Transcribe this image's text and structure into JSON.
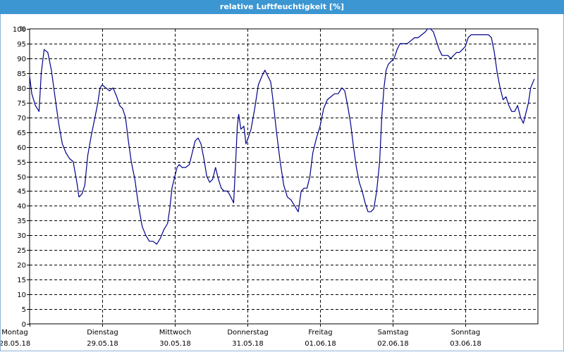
{
  "window": {
    "title": "relative Luftfeuchtigkeit [%]"
  },
  "colors": {
    "titlebar": "#3c96d2",
    "series": "#00008b",
    "grid": "#000000"
  },
  "chart_data": {
    "type": "line",
    "title": "relative Luftfeuchtigkeit [%]",
    "ylabel": "%",
    "xlabel": "",
    "ylim": [
      0,
      100
    ],
    "xlim": [
      0,
      7
    ],
    "y_ticks": [
      0,
      5,
      10,
      15,
      20,
      25,
      30,
      35,
      40,
      45,
      50,
      55,
      60,
      65,
      70,
      75,
      80,
      85,
      90,
      95,
      100
    ],
    "x_ticks": [
      {
        "day": "Montag",
        "date": "28.05.18"
      },
      {
        "day": "Dienstag",
        "date": "29.05.18"
      },
      {
        "day": "Mittwoch",
        "date": "30.05.18"
      },
      {
        "day": "Donnerstag",
        "date": "31.05.18"
      },
      {
        "day": "Freitag",
        "date": "01.06.18"
      },
      {
        "day": "Samstag",
        "date": "02.06.18"
      },
      {
        "day": "Sonntag",
        "date": "03.06.18"
      }
    ],
    "grid": true,
    "series": [
      {
        "values": [
          [
            0.0,
            84
          ],
          [
            0.03,
            78
          ],
          [
            0.08,
            74
          ],
          [
            0.13,
            72
          ],
          [
            0.16,
            85
          ],
          [
            0.2,
            93
          ],
          [
            0.25,
            92
          ],
          [
            0.3,
            86
          ],
          [
            0.35,
            77
          ],
          [
            0.4,
            68
          ],
          [
            0.45,
            61
          ],
          [
            0.5,
            58
          ],
          [
            0.55,
            56
          ],
          [
            0.6,
            55
          ],
          [
            0.65,
            48
          ],
          [
            0.68,
            43
          ],
          [
            0.72,
            44
          ],
          [
            0.76,
            47
          ],
          [
            0.8,
            57
          ],
          [
            0.85,
            64
          ],
          [
            0.9,
            70
          ],
          [
            0.94,
            75
          ],
          [
            0.97,
            80
          ],
          [
            1.0,
            81
          ],
          [
            1.05,
            80
          ],
          [
            1.1,
            79
          ],
          [
            1.15,
            80
          ],
          [
            1.2,
            77
          ],
          [
            1.24,
            74
          ],
          [
            1.28,
            73
          ],
          [
            1.32,
            70
          ],
          [
            1.36,
            62
          ],
          [
            1.4,
            55
          ],
          [
            1.45,
            49
          ],
          [
            1.5,
            40
          ],
          [
            1.55,
            33
          ],
          [
            1.6,
            30
          ],
          [
            1.65,
            28
          ],
          [
            1.7,
            28
          ],
          [
            1.75,
            27
          ],
          [
            1.8,
            29
          ],
          [
            1.85,
            32
          ],
          [
            1.9,
            34
          ],
          [
            1.93,
            39
          ],
          [
            1.96,
            46
          ],
          [
            2.0,
            50
          ],
          [
            2.03,
            53
          ],
          [
            2.06,
            54
          ],
          [
            2.1,
            53
          ],
          [
            2.15,
            53
          ],
          [
            2.2,
            54
          ],
          [
            2.24,
            58
          ],
          [
            2.28,
            62
          ],
          [
            2.32,
            63
          ],
          [
            2.36,
            61
          ],
          [
            2.4,
            56
          ],
          [
            2.44,
            50
          ],
          [
            2.48,
            48
          ],
          [
            2.52,
            49
          ],
          [
            2.56,
            53
          ],
          [
            2.6,
            49
          ],
          [
            2.64,
            46
          ],
          [
            2.68,
            45
          ],
          [
            2.72,
            45
          ],
          [
            2.75,
            44
          ],
          [
            2.79,
            42
          ],
          [
            2.81,
            41
          ],
          [
            2.84,
            56
          ],
          [
            2.86,
            67
          ],
          [
            2.88,
            71
          ],
          [
            2.91,
            66
          ],
          [
            2.95,
            67
          ],
          [
            2.98,
            61
          ],
          [
            3.01,
            63
          ],
          [
            3.05,
            66
          ],
          [
            3.1,
            73
          ],
          [
            3.15,
            81
          ],
          [
            3.2,
            84
          ],
          [
            3.24,
            86
          ],
          [
            3.28,
            84
          ],
          [
            3.32,
            82
          ],
          [
            3.36,
            74
          ],
          [
            3.4,
            65
          ],
          [
            3.45,
            55
          ],
          [
            3.5,
            47
          ],
          [
            3.55,
            43
          ],
          [
            3.6,
            42
          ],
          [
            3.65,
            40
          ],
          [
            3.7,
            38
          ],
          [
            3.74,
            45
          ],
          [
            3.78,
            46
          ],
          [
            3.82,
            46
          ],
          [
            3.86,
            50
          ],
          [
            3.9,
            58
          ],
          [
            3.95,
            63
          ],
          [
            4.0,
            67
          ],
          [
            4.05,
            73
          ],
          [
            4.1,
            76
          ],
          [
            4.15,
            77
          ],
          [
            4.2,
            78
          ],
          [
            4.25,
            78
          ],
          [
            4.3,
            80
          ],
          [
            4.34,
            79
          ],
          [
            4.38,
            74
          ],
          [
            4.42,
            68
          ],
          [
            4.46,
            60
          ],
          [
            4.5,
            53
          ],
          [
            4.54,
            48
          ],
          [
            4.58,
            45
          ],
          [
            4.62,
            41
          ],
          [
            4.66,
            38
          ],
          [
            4.7,
            38
          ],
          [
            4.74,
            39
          ],
          [
            4.78,
            45
          ],
          [
            4.82,
            55
          ],
          [
            4.85,
            70
          ],
          [
            4.88,
            80
          ],
          [
            4.91,
            86
          ],
          [
            4.94,
            88
          ],
          [
            4.98,
            89
          ],
          [
            5.02,
            90
          ],
          [
            5.06,
            93
          ],
          [
            5.1,
            95
          ],
          [
            5.15,
            95
          ],
          [
            5.2,
            95
          ],
          [
            5.25,
            96
          ],
          [
            5.3,
            97
          ],
          [
            5.35,
            97
          ],
          [
            5.4,
            98
          ],
          [
            5.45,
            99
          ],
          [
            5.48,
            100
          ],
          [
            5.52,
            100
          ],
          [
            5.56,
            99
          ],
          [
            5.6,
            96
          ],
          [
            5.64,
            93
          ],
          [
            5.68,
            91
          ],
          [
            5.72,
            91
          ],
          [
            5.76,
            91
          ],
          [
            5.8,
            90
          ],
          [
            5.84,
            91
          ],
          [
            5.88,
            92
          ],
          [
            5.92,
            92
          ],
          [
            5.96,
            93
          ],
          [
            6.0,
            94
          ],
          [
            6.04,
            97
          ],
          [
            6.08,
            98
          ],
          [
            6.12,
            98
          ],
          [
            6.16,
            98
          ],
          [
            6.2,
            98
          ],
          [
            6.24,
            98
          ],
          [
            6.28,
            98
          ],
          [
            6.32,
            98
          ],
          [
            6.36,
            97
          ],
          [
            6.4,
            92
          ],
          [
            6.44,
            85
          ],
          [
            6.48,
            80
          ],
          [
            6.52,
            76
          ],
          [
            6.56,
            77
          ],
          [
            6.6,
            74
          ],
          [
            6.64,
            72
          ],
          [
            6.68,
            72
          ],
          [
            6.72,
            74
          ],
          [
            6.76,
            70
          ],
          [
            6.8,
            68
          ],
          [
            6.84,
            72
          ],
          [
            6.87,
            75
          ],
          [
            6.9,
            80
          ],
          [
            6.95,
            83
          ]
        ]
      }
    ]
  }
}
